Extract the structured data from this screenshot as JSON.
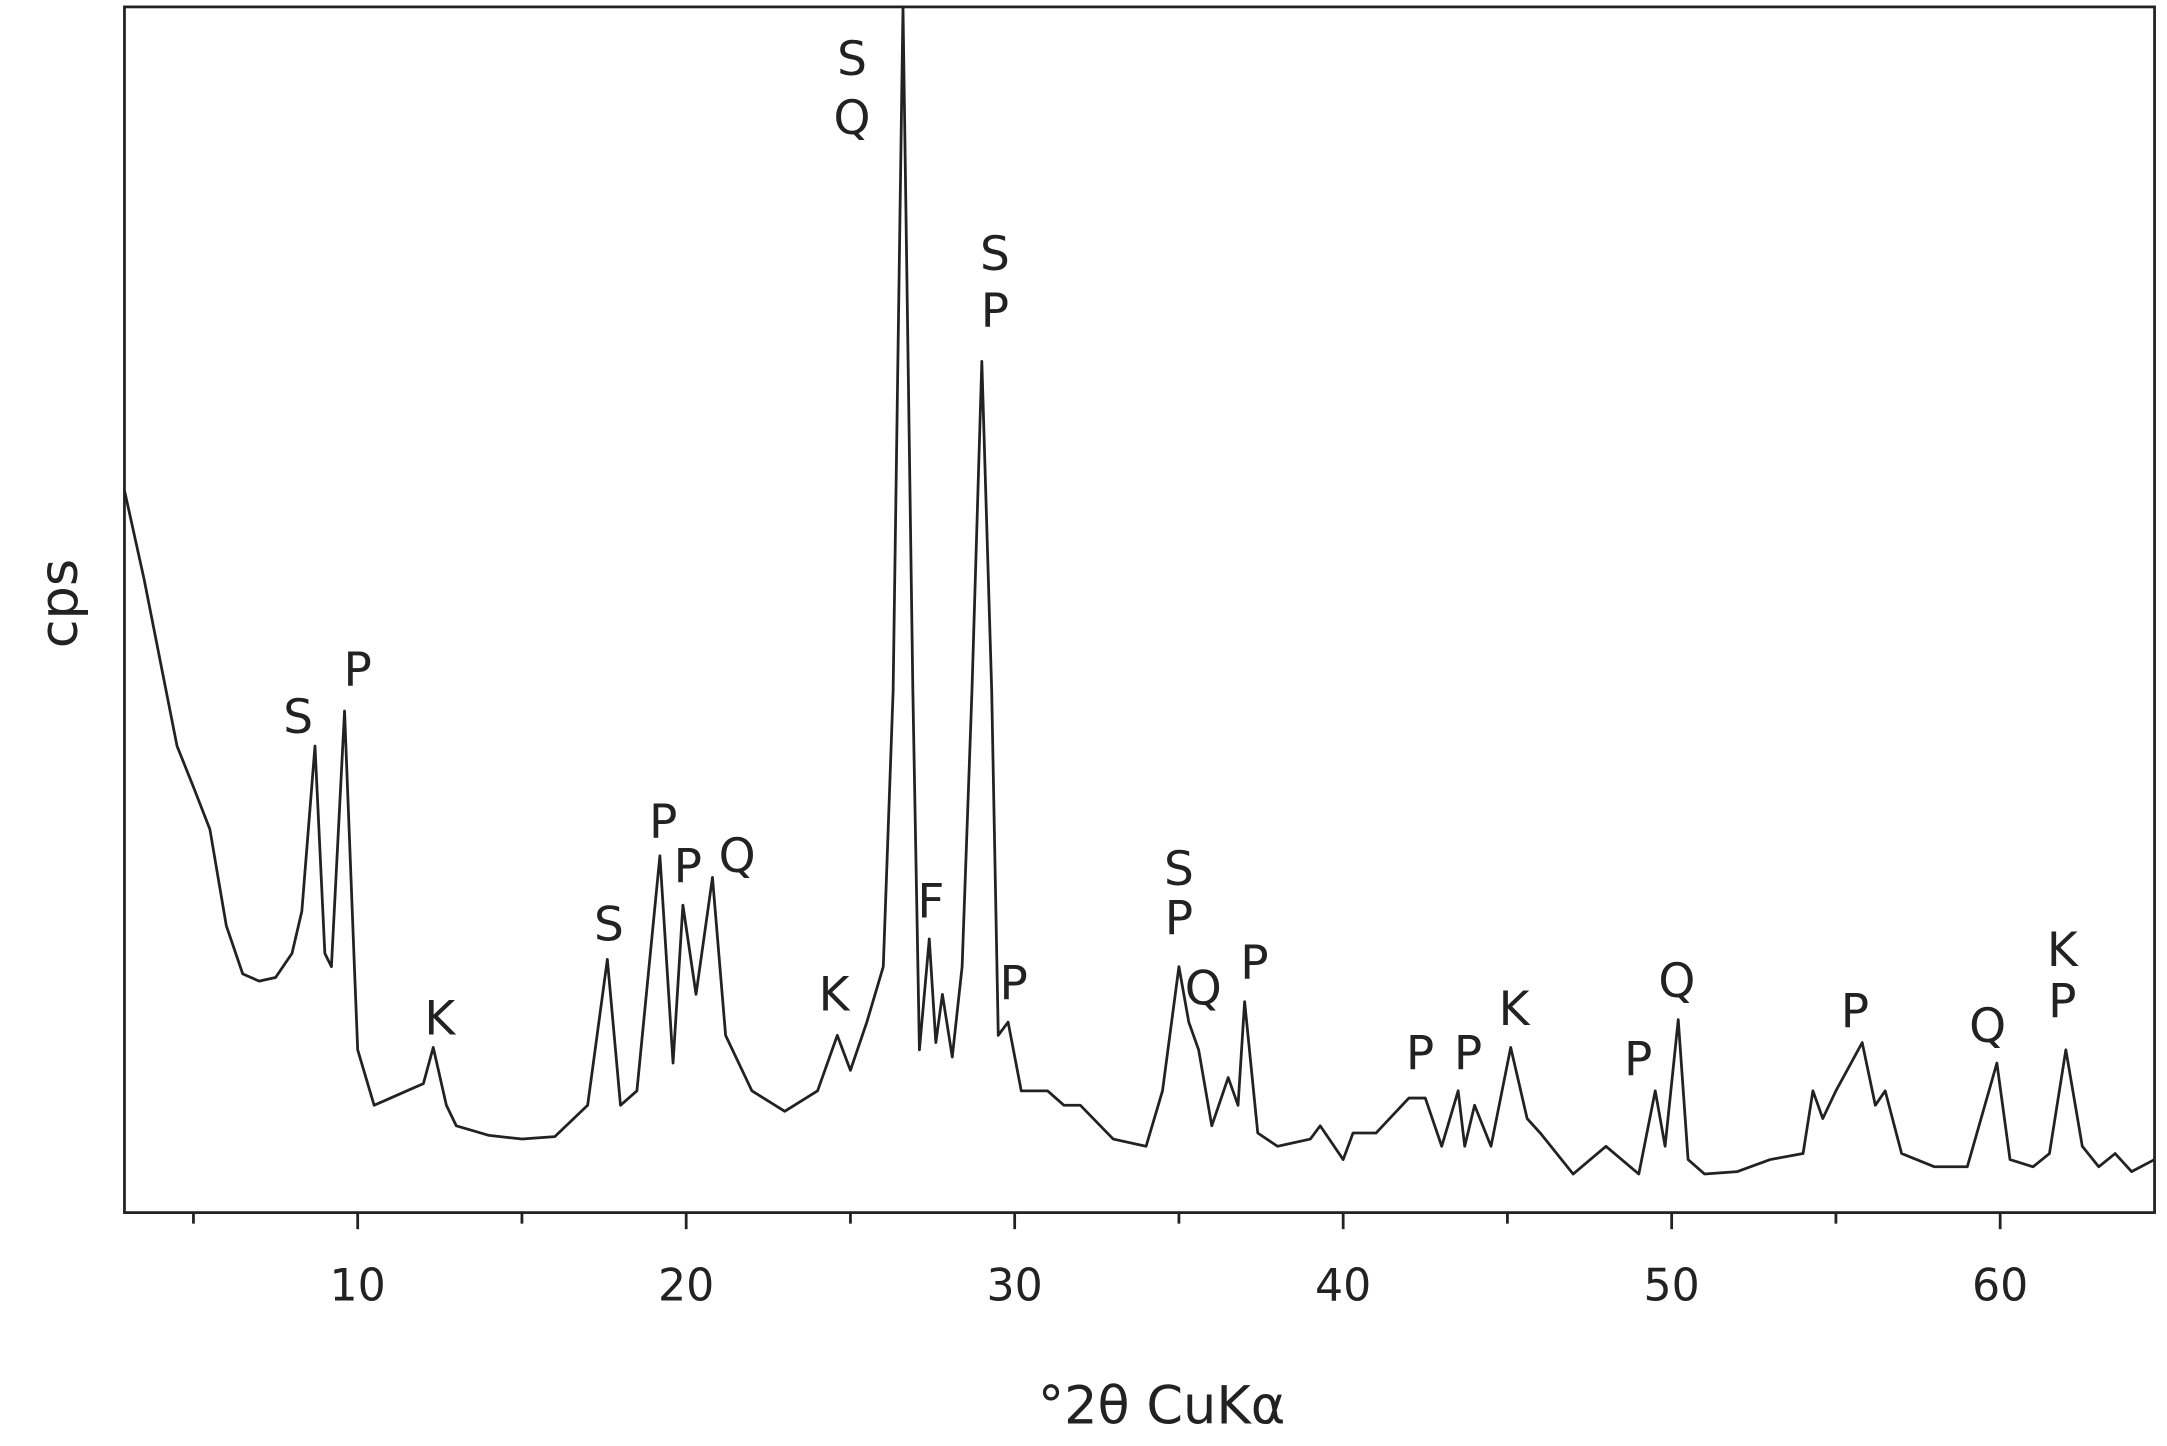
{
  "chart_data": {
    "type": "line",
    "xlabel": "°2θ CuKα",
    "ylabel": "cps",
    "xlim": [
      2.9,
      64.7
    ],
    "ylim": [
      0,
      100
    ],
    "xticks": [
      10,
      20,
      30,
      40,
      50,
      60
    ],
    "xminorticks": [
      5,
      15,
      25,
      35,
      45,
      55
    ],
    "series": [
      {
        "color": "#222222",
        "x": [
          2.9,
          3.5,
          4,
          4.5,
          5,
          5.5,
          6,
          6.5,
          7,
          7.5,
          8,
          8.3,
          8.7,
          9,
          9.2,
          9.6,
          9.9,
          10,
          10.5,
          11,
          11.5,
          12,
          12.3,
          12.7,
          13,
          14,
          15,
          16,
          17,
          17.6,
          18,
          18.5,
          19.2,
          19.6,
          19.9,
          20.3,
          20.8,
          21.2,
          22,
          23,
          24,
          24.6,
          25,
          25.5,
          26,
          26.3,
          26.6,
          26.9,
          27.1,
          27.4,
          27.6,
          27.8,
          28.1,
          28.4,
          28.7,
          29,
          29.3,
          29.5,
          29.8,
          30.2,
          31,
          31.5,
          32,
          33,
          34,
          34.5,
          35,
          35.3,
          35.6,
          36,
          36.5,
          36.8,
          37,
          37.4,
          38,
          39,
          39.3,
          40,
          40.3,
          41,
          42,
          42.5,
          43,
          43.5,
          43.7,
          44,
          44.5,
          45.1,
          45.6,
          46,
          47,
          48,
          49,
          49.5,
          49.8,
          50.2,
          50.5,
          51,
          52,
          53,
          54,
          54.3,
          54.6,
          55,
          55.8,
          56.2,
          56.5,
          57,
          58,
          59,
          59.9,
          60.3,
          61,
          61.5,
          62,
          62.5,
          63,
          63.5,
          64,
          64.7
        ],
        "values": [
          59.9,
          52.5,
          45.6,
          38.7,
          35.3,
          31.8,
          23.8,
          19.8,
          19.2,
          19.5,
          21.5,
          25.0,
          38.7,
          21.5,
          20.4,
          41.6,
          20.4,
          13.5,
          8.9,
          9.5,
          10.1,
          10.7,
          13.7,
          8.9,
          7.2,
          6.4,
          6.1,
          6.3,
          8.9,
          21.0,
          8.9,
          10.1,
          29.6,
          12.4,
          25.5,
          18.1,
          27.8,
          14.7,
          10.1,
          8.4,
          10.1,
          14.7,
          11.8,
          15.8,
          20.4,
          43.3,
          100,
          43.3,
          13.5,
          22.7,
          14.1,
          18.1,
          12.9,
          20.4,
          43.3,
          70.6,
          43.3,
          14.7,
          15.8,
          10.1,
          10.1,
          8.9,
          8.9,
          6.1,
          5.5,
          10.1,
          20.4,
          15.8,
          13.5,
          7.2,
          11.2,
          8.9,
          17.5,
          6.6,
          5.5,
          6.1,
          7.2,
          4.4,
          6.6,
          6.6,
          9.5,
          9.5,
          5.5,
          10.1,
          5.5,
          8.9,
          5.5,
          13.7,
          7.8,
          6.6,
          3.2,
          5.5,
          3.2,
          10.1,
          5.5,
          16.0,
          4.4,
          3.2,
          3.4,
          4.4,
          4.9,
          10.1,
          7.8,
          10.1,
          14.1,
          8.9,
          10.1,
          4.9,
          3.8,
          3.8,
          12.4,
          4.4,
          3.8,
          4.9,
          13.5,
          5.5,
          3.8,
          4.9,
          3.4,
          4.4
        ]
      }
    ],
    "annotations": [
      {
        "text": "S",
        "x": 8.19,
        "y": 40.8
      },
      {
        "text": "P",
        "x": 10.0,
        "y": 44.7
      },
      {
        "text": "K",
        "x": 12.5,
        "y": 15.8
      },
      {
        "text": "S",
        "x": 17.65,
        "y": 23.6
      },
      {
        "text": "P",
        "x": 19.3,
        "y": 32.1
      },
      {
        "text": "P",
        "x": 20.05,
        "y": 28.4
      },
      {
        "text": "Q",
        "x": 21.55,
        "y": 29.3
      },
      {
        "text": "K",
        "x": 24.5,
        "y": 17.8
      },
      {
        "text": "S",
        "x": 25.05,
        "y": 95.4
      },
      {
        "text": "Q",
        "x": 25.05,
        "y": 90.5
      },
      {
        "text": "F",
        "x": 27.45,
        "y": 25.5
      },
      {
        "text": "S",
        "x": 29.4,
        "y": 79.2
      },
      {
        "text": "P",
        "x": 29.4,
        "y": 74.5
      },
      {
        "text": "P",
        "x": 29.97,
        "y": 18.7
      },
      {
        "text": "S",
        "x": 35.0,
        "y": 28.2
      },
      {
        "text": "P",
        "x": 35.0,
        "y": 24.1
      },
      {
        "text": "Q",
        "x": 35.74,
        "y": 18.3
      },
      {
        "text": "P",
        "x": 37.3,
        "y": 20.4
      },
      {
        "text": "P",
        "x": 42.34,
        "y": 12.9
      },
      {
        "text": "P",
        "x": 43.8,
        "y": 12.9
      },
      {
        "text": "K",
        "x": 45.2,
        "y": 16.6
      },
      {
        "text": "P",
        "x": 48.98,
        "y": 12.4
      },
      {
        "text": "Q",
        "x": 50.16,
        "y": 18.9
      },
      {
        "text": "P",
        "x": 55.58,
        "y": 16.4
      },
      {
        "text": "Q",
        "x": 59.62,
        "y": 15.2
      },
      {
        "text": "K",
        "x": 61.89,
        "y": 21.5
      },
      {
        "text": "P",
        "x": 61.89,
        "y": 17.2
      }
    ]
  }
}
